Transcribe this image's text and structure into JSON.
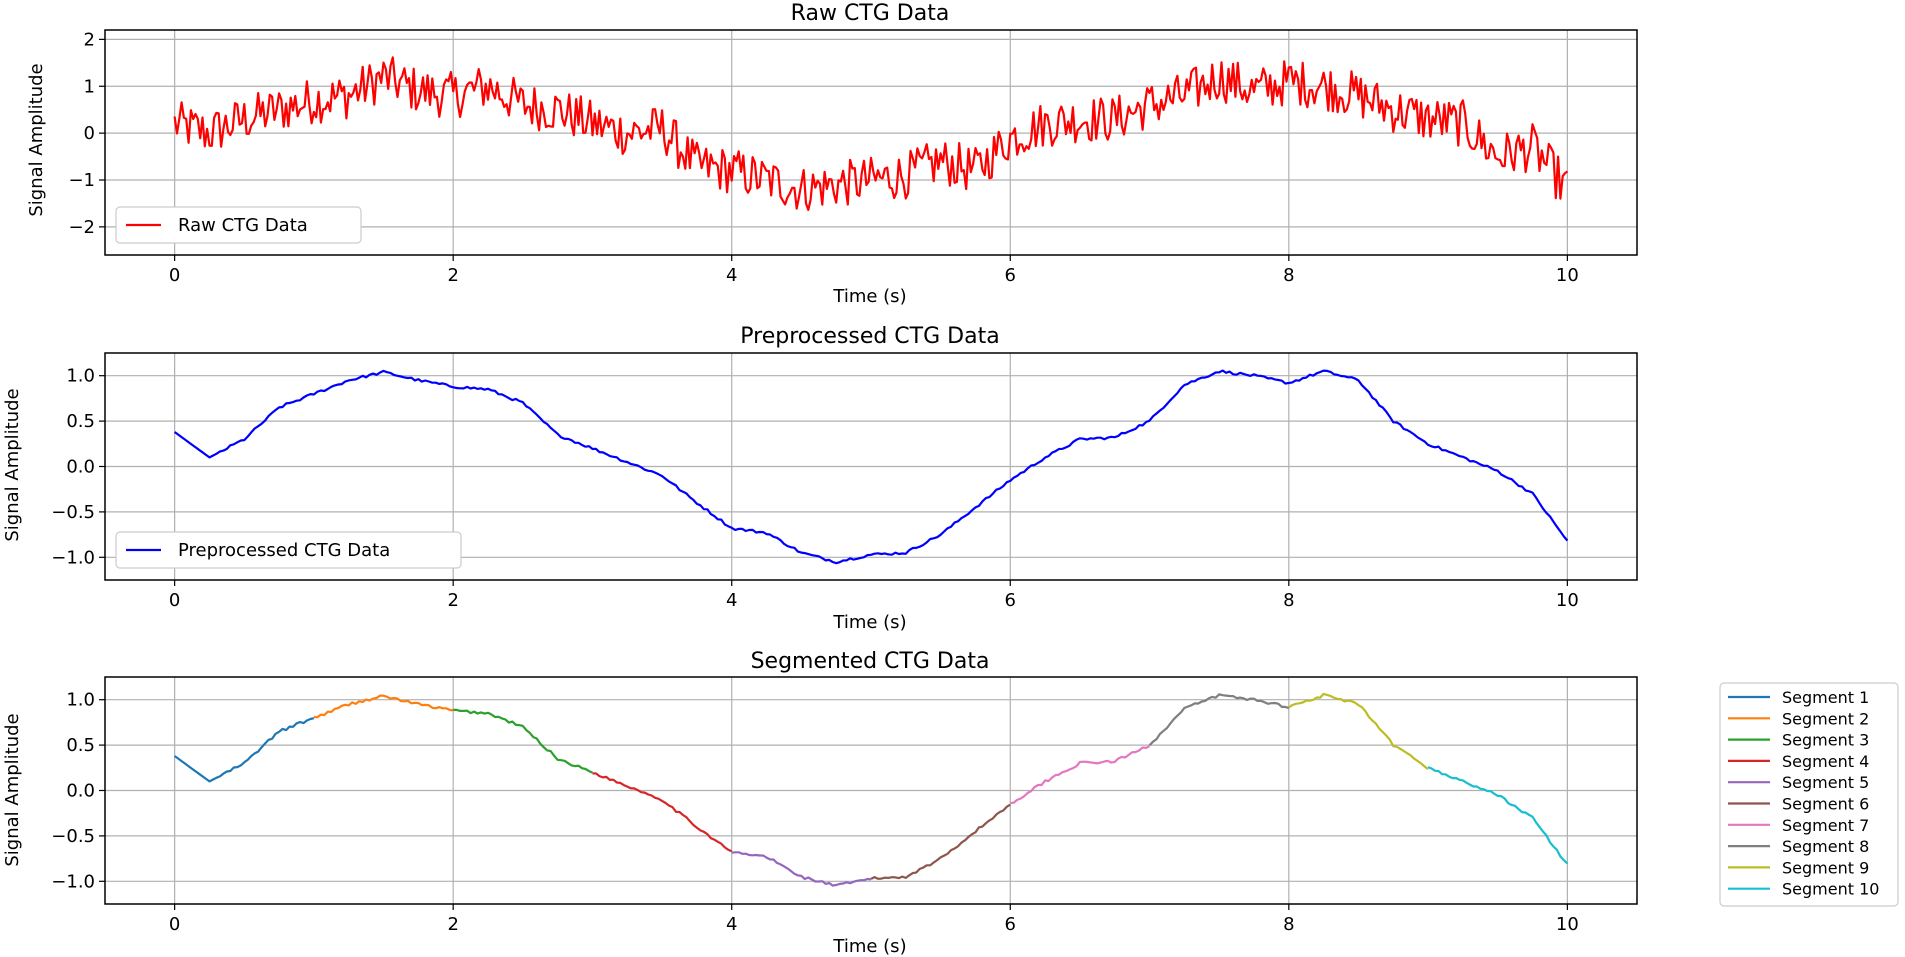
{
  "chart_data": [
    {
      "id": "raw",
      "type": "line",
      "title": "Raw CTG Data",
      "xlabel": "Time (s)",
      "ylabel": "Signal Amplitude",
      "xlim": [
        -0.5,
        10.5
      ],
      "ylim": [
        -2.6,
        2.2
      ],
      "xticks": [
        0,
        2,
        4,
        6,
        8,
        10
      ],
      "xtick_labels": [
        "0",
        "2",
        "4",
        "6",
        "8",
        "10"
      ],
      "yticks": [
        2,
        1,
        0,
        -1,
        -2
      ],
      "ytick_labels": [
        "2",
        "1",
        "0",
        "−1",
        "−2"
      ],
      "grid": true,
      "legend_position": "lower-left",
      "series": [
        {
          "name": "Raw CTG Data",
          "color": "#ff0000",
          "x": [
            0,
            0.25,
            0.5,
            0.75,
            1,
            1.25,
            1.5,
            1.75,
            2,
            2.25,
            2.5,
            2.75,
            3,
            3.25,
            3.5,
            3.75,
            4,
            4.25,
            4.5,
            4.75,
            5,
            5.25,
            5.5,
            5.75,
            6,
            6.25,
            6.5,
            6.75,
            7,
            7.25,
            7.5,
            7.75,
            8,
            8.25,
            8.5,
            8.75,
            9,
            9.25,
            9.5,
            9.75,
            10
          ],
          "y": [
            0.2,
            0.0,
            0.3,
            0.5,
            0.7,
            0.8,
            1.2,
            0.9,
            0.8,
            1.0,
            0.6,
            0.5,
            0.2,
            0.0,
            0.1,
            -0.7,
            -0.8,
            -1.0,
            -1.2,
            -1.1,
            -1.0,
            -0.9,
            -0.6,
            -0.8,
            -0.1,
            0.2,
            0.3,
            0.3,
            0.6,
            0.8,
            1.2,
            0.9,
            1.1,
            1.0,
            0.8,
            0.5,
            0.3,
            0.2,
            -0.5,
            -0.3,
            -1.2
          ],
          "noise_amplitude": 0.5
        }
      ]
    },
    {
      "id": "pre",
      "type": "line",
      "title": "Preprocessed CTG Data",
      "xlabel": "Time (s)",
      "ylabel": "Signal Amplitude",
      "xlim": [
        -0.5,
        10.5
      ],
      "ylim": [
        -1.25,
        1.25
      ],
      "xticks": [
        0,
        2,
        4,
        6,
        8,
        10
      ],
      "xtick_labels": [
        "0",
        "2",
        "4",
        "6",
        "8",
        "10"
      ],
      "yticks": [
        1.0,
        0.5,
        0.0,
        -0.5,
        -1.0
      ],
      "ytick_labels": [
        "1.0",
        "0.5",
        "0.0",
        "−0.5",
        "−1.0"
      ],
      "grid": true,
      "legend_position": "lower-left",
      "series": [
        {
          "name": "Preprocessed CTG Data",
          "color": "#0000ff",
          "x": [
            0,
            0.25,
            0.5,
            0.75,
            1,
            1.25,
            1.5,
            1.75,
            2,
            2.25,
            2.5,
            2.75,
            3,
            3.25,
            3.5,
            3.75,
            4,
            4.25,
            4.5,
            4.75,
            5,
            5.25,
            5.5,
            5.75,
            6,
            6.25,
            6.5,
            6.75,
            7,
            7.25,
            7.5,
            7.75,
            8,
            8.25,
            8.5,
            8.75,
            9,
            9.25,
            9.5,
            9.75,
            10
          ],
          "y": [
            0.38,
            0.1,
            0.3,
            0.65,
            0.8,
            0.95,
            1.04,
            0.95,
            0.88,
            0.85,
            0.7,
            0.35,
            0.2,
            0.05,
            -0.1,
            -0.4,
            -0.68,
            -0.73,
            -0.95,
            -1.05,
            -0.97,
            -0.95,
            -0.75,
            -0.45,
            -0.15,
            0.1,
            0.3,
            0.32,
            0.5,
            0.9,
            1.05,
            1.0,
            0.92,
            1.05,
            0.95,
            0.5,
            0.25,
            0.1,
            -0.05,
            -0.3,
            -0.82
          ]
        }
      ]
    },
    {
      "id": "seg",
      "type": "line",
      "title": "Segmented CTG Data",
      "xlabel": "Time (s)",
      "ylabel": "Signal Amplitude",
      "xlim": [
        -0.5,
        10.5
      ],
      "ylim": [
        -1.25,
        1.25
      ],
      "xticks": [
        0,
        2,
        4,
        6,
        8,
        10
      ],
      "xtick_labels": [
        "0",
        "2",
        "4",
        "6",
        "8",
        "10"
      ],
      "yticks": [
        1.0,
        0.5,
        0.0,
        -0.5,
        -1.0
      ],
      "ytick_labels": [
        "1.0",
        "0.5",
        "0.0",
        "−0.5",
        "−1.0"
      ],
      "grid": true,
      "legend_position": "outside-right",
      "segments": [
        {
          "name": "Segment 1",
          "color": "#1f77b4",
          "x0": 0,
          "x1": 1
        },
        {
          "name": "Segment 2",
          "color": "#ff7f0e",
          "x0": 1,
          "x1": 2
        },
        {
          "name": "Segment 3",
          "color": "#2ca02c",
          "x0": 2,
          "x1": 3
        },
        {
          "name": "Segment 4",
          "color": "#d62728",
          "x0": 3,
          "x1": 4
        },
        {
          "name": "Segment 5",
          "color": "#9467bd",
          "x0": 4,
          "x1": 5
        },
        {
          "name": "Segment 6",
          "color": "#8c564b",
          "x0": 5,
          "x1": 6
        },
        {
          "name": "Segment 7",
          "color": "#e377c2",
          "x0": 6,
          "x1": 7
        },
        {
          "name": "Segment 8",
          "color": "#7f7f7f",
          "x0": 7,
          "x1": 8
        },
        {
          "name": "Segment 9",
          "color": "#bcbd22",
          "x0": 8,
          "x1": 9
        },
        {
          "name": "Segment 10",
          "color": "#17becf",
          "x0": 9,
          "x1": 10
        }
      ]
    }
  ]
}
